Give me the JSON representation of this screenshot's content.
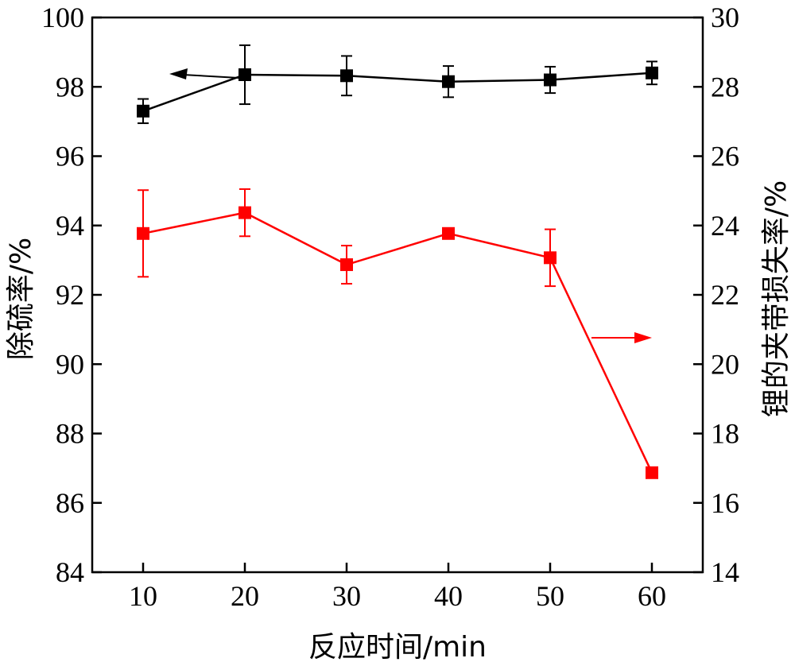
{
  "chart_data": {
    "type": "line",
    "x": [
      10,
      20,
      30,
      40,
      50,
      60
    ],
    "xlabel": "反应时间/min",
    "xlim": [
      5,
      65
    ],
    "xticks": [
      10,
      20,
      30,
      40,
      50,
      60
    ],
    "ylabel_left": "除硫率/%",
    "ylim_left": [
      84,
      100
    ],
    "yticks_left": [
      84,
      86,
      88,
      90,
      92,
      94,
      96,
      98,
      100
    ],
    "ylabel_right": "锂的夹带损失率/%",
    "ylim_right": [
      14,
      30
    ],
    "yticks_right": [
      14,
      16,
      18,
      20,
      22,
      24,
      26,
      28,
      30
    ],
    "grid": false,
    "series": [
      {
        "axis": "left",
        "color": "#000000",
        "marker": "square",
        "values": [
          97.3,
          98.35,
          98.32,
          98.15,
          98.2,
          98.4
        ],
        "error": [
          0.35,
          0.85,
          0.57,
          0.45,
          0.38,
          0.33
        ],
        "arrow": "left"
      },
      {
        "axis": "right",
        "color": "#ff0000",
        "marker": "square",
        "values": [
          23.77,
          24.37,
          22.87,
          23.77,
          23.07,
          16.87
        ],
        "error": [
          1.25,
          0.68,
          0.55,
          0.0,
          0.82,
          0.0
        ],
        "arrow": "right"
      }
    ]
  }
}
